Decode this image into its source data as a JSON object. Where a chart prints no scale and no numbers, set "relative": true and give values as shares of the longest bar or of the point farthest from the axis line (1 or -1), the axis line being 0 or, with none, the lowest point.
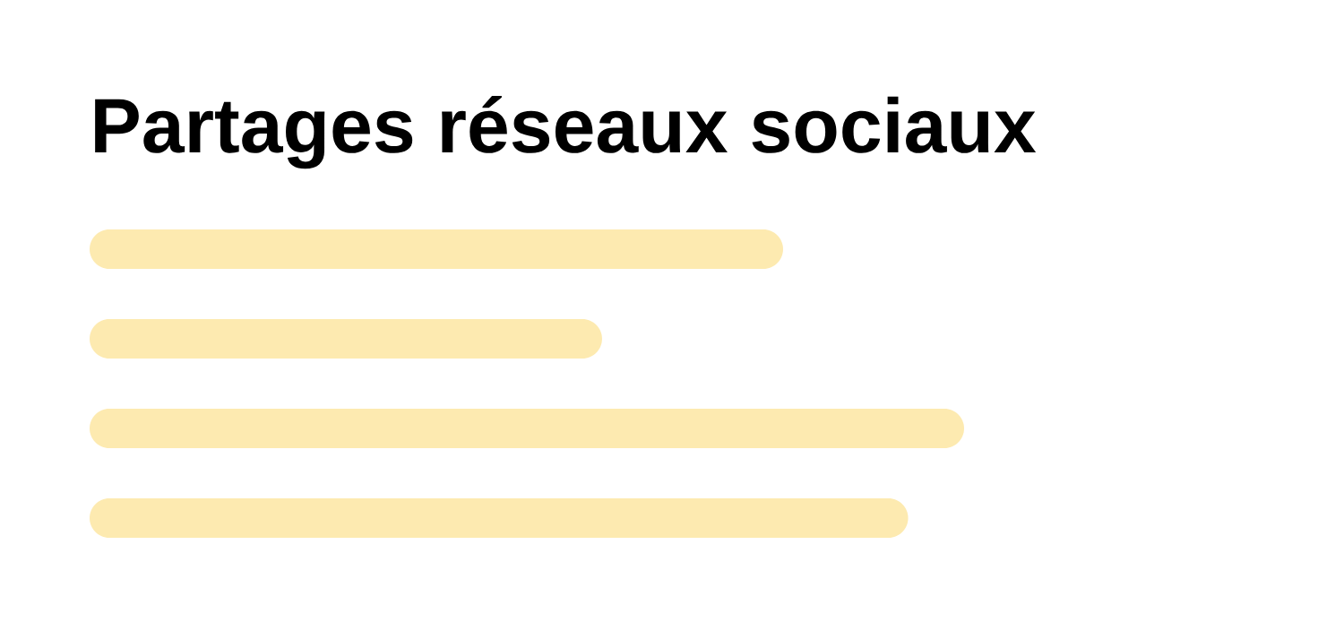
{
  "chart_data": {
    "type": "bar",
    "orientation": "horizontal",
    "relative": true,
    "title": "Partages réseaux sociaux",
    "categories": [
      null,
      null,
      null,
      null
    ],
    "values": [
      0.793,
      0.586,
      1,
      0.936
    ],
    "color": "#fdeab0"
  }
}
